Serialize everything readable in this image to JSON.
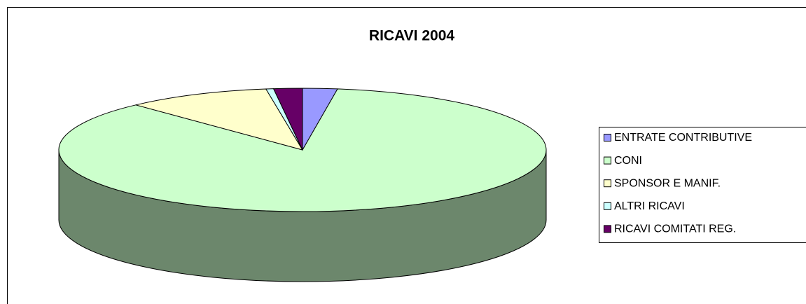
{
  "chart_data": {
    "type": "pie",
    "title": "RICAVI 2004",
    "categories": [
      "ENTRATE CONTRIBUTIVE",
      "CONI",
      "SPONSOR E MANIF.",
      "ALTRI RICAVI",
      "RICAVI COMITATI REG."
    ],
    "values": [
      2.3,
      85.8,
      9.6,
      0.5,
      1.9
    ],
    "colors": [
      "#9999ff",
      "#ccffcc",
      "#ffffcc",
      "#ccffff",
      "#660066"
    ],
    "legend": "right"
  }
}
